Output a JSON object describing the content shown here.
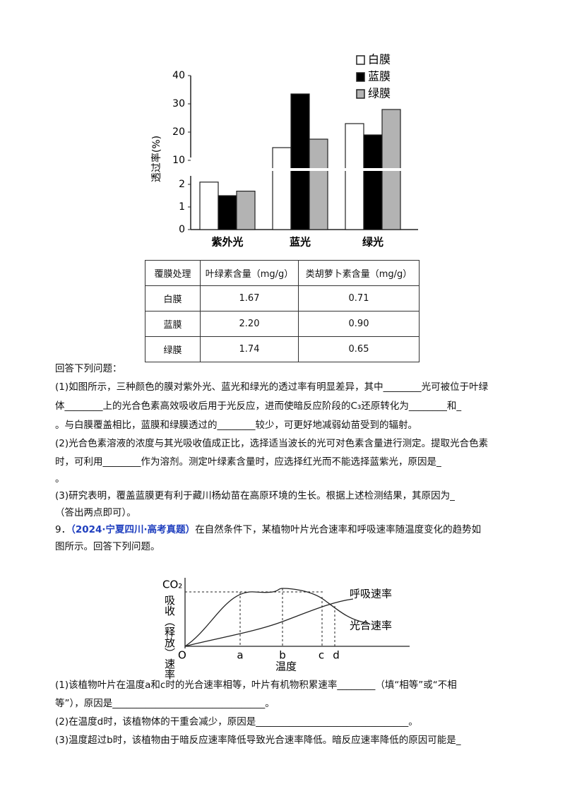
{
  "chart_data": {
    "type": "bar",
    "y_label": "透过率(%)",
    "categories": [
      "紫外光",
      "蓝光",
      "绿光"
    ],
    "series": [
      {
        "name": "白膜",
        "color": "#ffffff",
        "values": [
          2.1,
          14.5,
          23
        ]
      },
      {
        "name": "蓝膜",
        "color": "#000000",
        "values": [
          1.5,
          33.5,
          19
        ]
      },
      {
        "name": "绿膜",
        "color": "#b3b3b3",
        "values": [
          1.7,
          17.5,
          28
        ]
      }
    ],
    "ylim": [
      0,
      40
    ],
    "yticks": [
      0,
      1,
      2,
      10,
      20,
      30,
      40
    ],
    "ybreak": [
      2.5,
      10
    ],
    "legend": "top-right"
  },
  "table": {
    "header": [
      "覆膜处理",
      "叶绿素含量（mg/g）",
      "类胡萝卜素含量（mg/g）"
    ],
    "rows": [
      [
        "白膜",
        "1.67",
        "0.71"
      ],
      [
        "蓝膜",
        "2.20",
        "0.90"
      ],
      [
        "绿膜",
        "1.74",
        "0.65"
      ]
    ]
  },
  "q8": {
    "intro": "回答下列问题：",
    "lines": [
      "(1)如图所示，三种颜色的膜对紫外光、蓝光和绿光的透过率有明显差异，其中________光可被位于叶绿",
      "体________上的光合色素高效吸收后用于光反应，进而使暗反应阶段的C₃还原转化为________和_",
      "。与白膜覆盖相比，蓝膜和绿膜透过的________较少，可更好地减弱幼苗受到的辐射。",
      "(2)光合色素溶液的浓度与其光吸收值成正比，选择适当波长的光可对色素含量进行测定。提取光合色素",
      "时，可利用________作为溶剂。测定叶绿素含量时，应选择红光而不能选择蓝紫光，原因是_",
      "。",
      "(3)研究表明，覆盖蓝膜更有利于藏川杨幼苗在高原环境的生长。根据上述检测结果，其原因为_",
      "（答出两点即可）。"
    ]
  },
  "q9": {
    "number": "9．",
    "source": "（2024·宁夏四川·高考真题）",
    "stem": [
      "在自然条件下，某植物叶片光合速率和呼吸速率随温度变化的趋势如",
      "图所示。回答下列问题。"
    ],
    "figure": {
      "y_label_top": "CO₂",
      "y_label": "吸收（释放）速率",
      "x_label": "温度",
      "origin": "O",
      "points": [
        "a",
        "b",
        "c",
        "d"
      ],
      "curve_labels": [
        "呼吸速率",
        "光合速率"
      ]
    },
    "lines": [
      "(1)该植物叶片在温度a和c时的光合速率相等，叶片有机物积累速率________（填“相等”或“不相",
      "等”），原因是________________________________。",
      "(2)在温度d时，该植物体的干重会减少，原因是________________________________。",
      "(3)温度超过b时，该植物由于暗反应速率降低导致光合速率降低。暗反应速率降低的原因可能是_"
    ]
  }
}
